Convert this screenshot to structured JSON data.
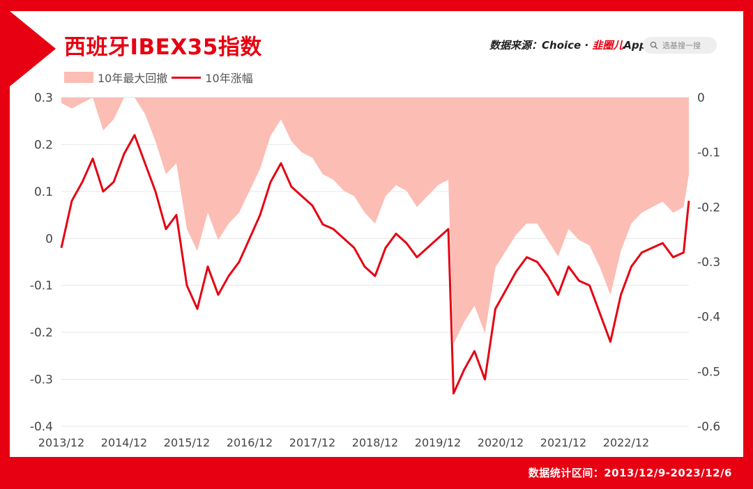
{
  "title": "西班牙IBEX35指数",
  "source": {
    "prefix": "数据来源：",
    "provider": "Choice",
    "separator": "·",
    "brand": "韭圈儿",
    "app": "App"
  },
  "search": {
    "icon": "search-icon",
    "placeholder": "选基搜一搜"
  },
  "legend": {
    "drawdown_label": "10年最大回撤",
    "return_label": "10年涨幅"
  },
  "footer": "数据统计区间：2013/12/9-2023/12/6",
  "colors": {
    "accent": "#e60012",
    "drawdown_fill": "#fbbdb4",
    "grid": "#e6e6e6"
  },
  "chart_data": {
    "type": "line",
    "grid": "horizontal",
    "legend_position": "top-left",
    "x_ticks": [
      "2013/12",
      "2014/12",
      "2015/12",
      "2016/12",
      "2017/12",
      "2018/12",
      "2019/12",
      "2020/12",
      "2021/12",
      "2022/12"
    ],
    "y_left": {
      "ticks": [
        "0.3",
        "0.2",
        "0.1",
        "0",
        "-0.1",
        "-0.2",
        "-0.3",
        "-0.4"
      ],
      "range": [
        -0.4,
        0.3
      ]
    },
    "y_right": {
      "ticks": [
        "0",
        "-0.1",
        "-0.2",
        "-0.3",
        "-0.4",
        "-0.5",
        "-0.6"
      ],
      "range": [
        -0.6,
        0
      ]
    },
    "series": [
      {
        "name": "10年涨幅",
        "kind": "line",
        "axis": "left",
        "x": [
          "2013-12",
          "2014-02",
          "2014-04",
          "2014-06",
          "2014-08",
          "2014-10",
          "2014-12",
          "2015-02",
          "2015-04",
          "2015-06",
          "2015-08",
          "2015-10",
          "2015-12",
          "2016-02",
          "2016-04",
          "2016-06",
          "2016-08",
          "2016-10",
          "2016-12",
          "2017-02",
          "2017-04",
          "2017-06",
          "2017-08",
          "2017-10",
          "2017-12",
          "2018-02",
          "2018-04",
          "2018-06",
          "2018-08",
          "2018-10",
          "2018-12",
          "2019-02",
          "2019-04",
          "2019-06",
          "2019-08",
          "2019-10",
          "2019-12",
          "2020-02",
          "2020-03",
          "2020-05",
          "2020-07",
          "2020-09",
          "2020-11",
          "2021-01",
          "2021-03",
          "2021-05",
          "2021-07",
          "2021-09",
          "2021-11",
          "2022-01",
          "2022-03",
          "2022-05",
          "2022-07",
          "2022-09",
          "2022-11",
          "2023-01",
          "2023-03",
          "2023-05",
          "2023-07",
          "2023-09",
          "2023-11",
          "2023-12"
        ],
        "values": [
          -0.02,
          0.08,
          0.12,
          0.17,
          0.1,
          0.12,
          0.18,
          0.22,
          0.16,
          0.1,
          0.02,
          0.05,
          -0.1,
          -0.15,
          -0.06,
          -0.12,
          -0.08,
          -0.05,
          0.0,
          0.05,
          0.12,
          0.16,
          0.11,
          0.09,
          0.07,
          0.03,
          0.02,
          0.0,
          -0.02,
          -0.06,
          -0.08,
          -0.02,
          0.01,
          -0.01,
          -0.04,
          -0.02,
          0.0,
          0.02,
          -0.33,
          -0.28,
          -0.24,
          -0.3,
          -0.15,
          -0.11,
          -0.07,
          -0.04,
          -0.05,
          -0.08,
          -0.12,
          -0.06,
          -0.09,
          -0.1,
          -0.16,
          -0.22,
          -0.12,
          -0.06,
          -0.03,
          -0.02,
          -0.01,
          -0.04,
          -0.03,
          0.08
        ]
      },
      {
        "name": "10年最大回撤",
        "kind": "area",
        "axis": "right",
        "x": [
          "2013-12",
          "2014-02",
          "2014-04",
          "2014-06",
          "2014-08",
          "2014-10",
          "2014-12",
          "2015-02",
          "2015-04",
          "2015-06",
          "2015-08",
          "2015-10",
          "2015-12",
          "2016-02",
          "2016-04",
          "2016-06",
          "2016-08",
          "2016-10",
          "2016-12",
          "2017-02",
          "2017-04",
          "2017-06",
          "2017-08",
          "2017-10",
          "2017-12",
          "2018-02",
          "2018-04",
          "2018-06",
          "2018-08",
          "2018-10",
          "2018-12",
          "2019-02",
          "2019-04",
          "2019-06",
          "2019-08",
          "2019-10",
          "2019-12",
          "2020-02",
          "2020-03",
          "2020-05",
          "2020-07",
          "2020-09",
          "2020-11",
          "2021-01",
          "2021-03",
          "2021-05",
          "2021-07",
          "2021-09",
          "2021-11",
          "2022-01",
          "2022-03",
          "2022-05",
          "2022-07",
          "2022-09",
          "2022-11",
          "2023-01",
          "2023-03",
          "2023-05",
          "2023-07",
          "2023-09",
          "2023-11",
          "2023-12"
        ],
        "values": [
          -0.01,
          -0.02,
          -0.01,
          0.0,
          -0.06,
          -0.04,
          0.0,
          0.0,
          -0.03,
          -0.08,
          -0.14,
          -0.12,
          -0.24,
          -0.28,
          -0.21,
          -0.26,
          -0.23,
          -0.21,
          -0.17,
          -0.13,
          -0.07,
          -0.04,
          -0.08,
          -0.1,
          -0.11,
          -0.14,
          -0.15,
          -0.17,
          -0.18,
          -0.21,
          -0.23,
          -0.18,
          -0.16,
          -0.17,
          -0.2,
          -0.18,
          -0.16,
          -0.15,
          -0.45,
          -0.41,
          -0.38,
          -0.43,
          -0.31,
          -0.28,
          -0.25,
          -0.23,
          -0.23,
          -0.26,
          -0.29,
          -0.24,
          -0.26,
          -0.27,
          -0.31,
          -0.36,
          -0.28,
          -0.23,
          -0.21,
          -0.2,
          -0.19,
          -0.21,
          -0.2,
          -0.14
        ]
      }
    ]
  }
}
